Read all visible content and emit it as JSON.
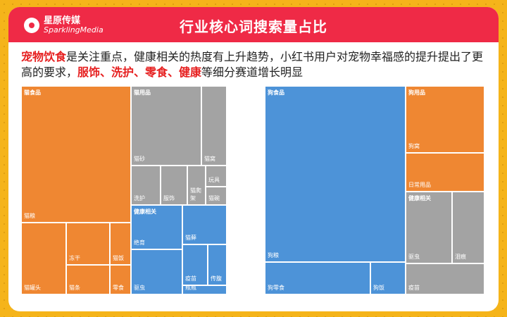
{
  "brand": {
    "name_cn": "星原传媒",
    "name_en": "SparklingMedia"
  },
  "title": "行业核心词搜索量占比",
  "description": {
    "part1": "宠物饮食",
    "part2": "是关注重点，健康相关的热度有上升趋势，小红书用户对宠物幸福感的提升提出了更高的要求，",
    "part3": "服饰、洗护、零食、健康",
    "part4": "等细分赛道增长明显"
  },
  "colors": {
    "accent_red": "#ef2a46",
    "orange": "#ef8732",
    "gray": "#a3a3a3",
    "blue": "#4d93d8",
    "background": "#f5b41a"
  },
  "chart_data": [
    {
      "type": "treemap",
      "groups": [
        {
          "name": "猫食品",
          "color": "orange",
          "items": [
            "猫粮",
            "猫罐头",
            "冻干",
            "猫条",
            "猫饭",
            "零食"
          ]
        },
        {
          "name": "猫用品",
          "color": "gray",
          "items": [
            "猫砂",
            "猫窝",
            "洗护",
            "服饰",
            "猫爬架",
            "玩具",
            "猫碗"
          ]
        },
        {
          "name": "健康相关",
          "color": "blue",
          "items": [
            "绝育",
            "猫藓",
            "驱虫",
            "疫苗",
            "传腹",
            "瓶瓶"
          ]
        }
      ]
    },
    {
      "type": "treemap",
      "groups": [
        {
          "name": "狗食品",
          "color": "blue",
          "items": [
            "狗粮",
            "狗零食",
            "狗饭"
          ]
        },
        {
          "name": "狗用品",
          "color": "orange",
          "items": [
            "狗窝",
            "日常用品"
          ]
        },
        {
          "name": "健康相关",
          "color": "gray",
          "items": [
            "驱虫",
            "泪痕",
            "疫苗"
          ]
        }
      ]
    }
  ],
  "labels": {
    "cat": {
      "food": "猫食品",
      "food_liang": "猫粮",
      "food_guantou": "猫罐头",
      "food_donggan": "冻干",
      "food_tiao": "猫条",
      "food_fan": "猫饭",
      "food_lingshi": "零食",
      "goods": "猫用品",
      "goods_sha": "猫砂",
      "goods_wo": "猫窝",
      "goods_xihu": "洗护",
      "goods_fushi": "服饰",
      "goods_pajia": "猫爬架",
      "goods_wanju": "玩具",
      "goods_wan": "猫碗",
      "health": "健康相关",
      "health_jueyu": "绝育",
      "health_xuan": "猫藓",
      "health_quchong": "驱虫",
      "health_yimiao": "疫苗",
      "health_chuanfu": "传腹",
      "health_pingping": "瓶瓶"
    },
    "dog": {
      "food": "狗食品",
      "food_liang": "狗粮",
      "food_lingshi": "狗零食",
      "food_fan": "狗饭",
      "goods": "狗用品",
      "goods_wo": "狗窝",
      "goods_daily": "日常用品",
      "health": "健康相关",
      "health_quchong": "驱虫",
      "health_leihen": "泪痕",
      "health_yimiao": "疫苗"
    }
  }
}
